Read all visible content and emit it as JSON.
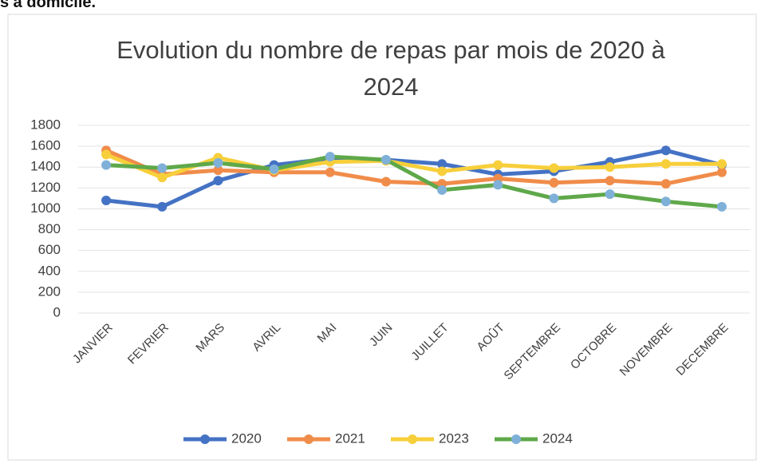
{
  "page_heading": "s à domicile.",
  "chart_data": {
    "type": "line",
    "title": "Evolution du nombre de repas par mois de 2020 à 2024",
    "categories": [
      "JANVIER",
      "FEVRIER",
      "MARS",
      "AVRIL",
      "MAI",
      "JUIN",
      "JUILLET",
      "AOÛT",
      "SEPTEMBRE",
      "OCTOBRE",
      "NOVEMBRE",
      "DECEMBRE"
    ],
    "series": [
      {
        "name": "2020",
        "color": "#4472c4",
        "marker_color": "#4472c4",
        "values": [
          1080,
          1020,
          1270,
          1420,
          1480,
          1470,
          1430,
          1330,
          1360,
          1450,
          1560,
          1420
        ]
      },
      {
        "name": "2021",
        "color": "#f08c4a",
        "marker_color": "#f08c4a",
        "values": [
          1560,
          1330,
          1370,
          1350,
          1350,
          1260,
          1240,
          1290,
          1250,
          1270,
          1240,
          1350
        ]
      },
      {
        "name": "2023",
        "color": "#f7cf3a",
        "marker_color": "#f7cf3a",
        "values": [
          1520,
          1300,
          1490,
          1370,
          1450,
          1460,
          1360,
          1420,
          1390,
          1400,
          1430,
          1430
        ]
      },
      {
        "name": "2024",
        "color": "#5fa84a",
        "marker_color": "#7fb0d8",
        "values": [
          1420,
          1390,
          1440,
          1380,
          1500,
          1470,
          1180,
          1230,
          1100,
          1140,
          1070,
          1020
        ]
      }
    ],
    "ylim": [
      0,
      1800
    ],
    "yticks": [
      0,
      200,
      400,
      600,
      800,
      1000,
      1200,
      1400,
      1600,
      1800
    ],
    "grid": true,
    "legend": "bottom"
  }
}
